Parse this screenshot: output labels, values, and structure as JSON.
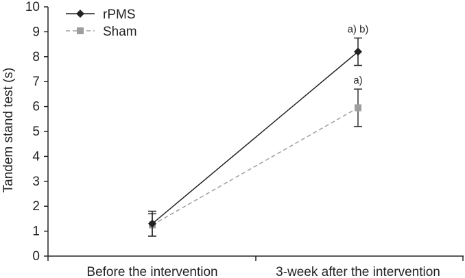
{
  "chart_data": {
    "type": "line",
    "categories": [
      "Before the intervention",
      "3-week after the intervention"
    ],
    "ylabel": "Tandem stand test (s)",
    "xlabel": "",
    "ylim": [
      0,
      10
    ],
    "yticks": [
      0,
      1,
      2,
      3,
      4,
      5,
      6,
      7,
      8,
      9,
      10
    ],
    "grid": false,
    "legend_position": "top-left",
    "series": [
      {
        "name": "rPMS",
        "values": [
          1.3,
          8.2
        ],
        "error": [
          0.5,
          0.55
        ],
        "color": "#222222",
        "line_style": "solid",
        "marker": "diamond",
        "annotations": [
          "",
          "a) b)"
        ]
      },
      {
        "name": "Sham",
        "values": [
          1.25,
          5.95
        ],
        "error": [
          0.45,
          0.75
        ],
        "color": "#9e9e9e",
        "line_style": "dashed",
        "marker": "square",
        "annotations": [
          "",
          "a)"
        ]
      }
    ]
  }
}
